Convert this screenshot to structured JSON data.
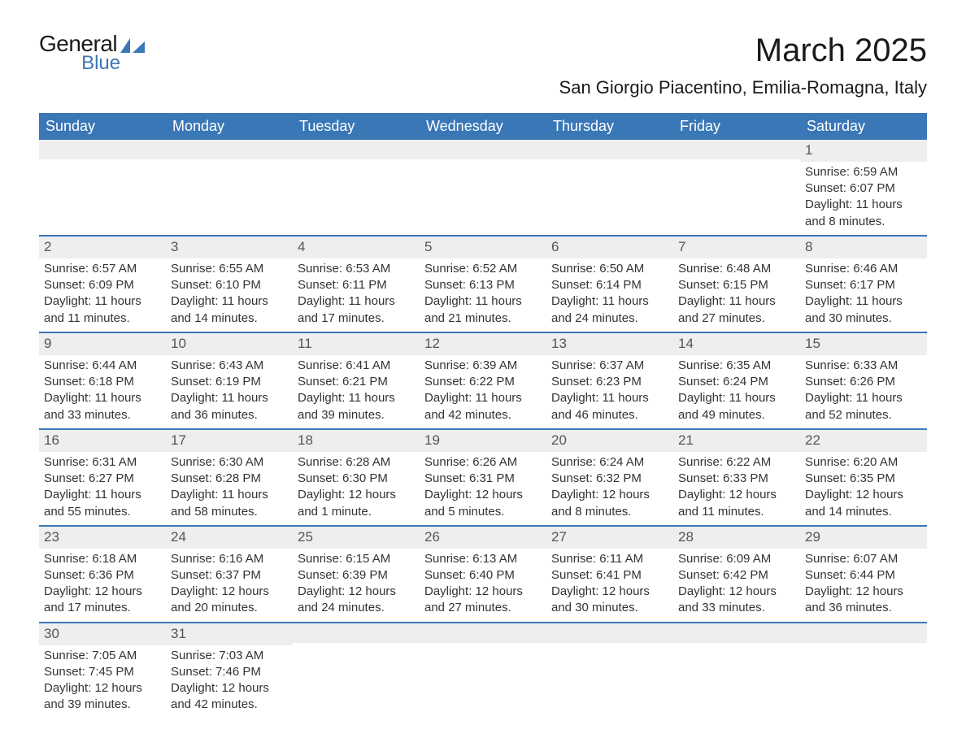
{
  "logo": {
    "top": "General",
    "bottom": "Blue",
    "sail_color": "#3a77b7"
  },
  "title": "March 2025",
  "subtitle": "San Giorgio Piacentino, Emilia-Romagna, Italy",
  "colors": {
    "header_bg": "#3a77b7",
    "header_text": "#ffffff",
    "daynum_bg": "#eeeeee",
    "daynum_text": "#555555",
    "row_border": "#3a77b7",
    "body_text": "#333333",
    "page_bg": "#ffffff"
  },
  "dayNames": [
    "Sunday",
    "Monday",
    "Tuesday",
    "Wednesday",
    "Thursday",
    "Friday",
    "Saturday"
  ],
  "labels": {
    "sunrise": "Sunrise:",
    "sunset": "Sunset:",
    "daylight": "Daylight:"
  },
  "weeks": [
    [
      null,
      null,
      null,
      null,
      null,
      null,
      {
        "n": 1,
        "sunrise": "6:59 AM",
        "sunset": "6:07 PM",
        "daylight": "11 hours and 8 minutes."
      }
    ],
    [
      {
        "n": 2,
        "sunrise": "6:57 AM",
        "sunset": "6:09 PM",
        "daylight": "11 hours and 11 minutes."
      },
      {
        "n": 3,
        "sunrise": "6:55 AM",
        "sunset": "6:10 PM",
        "daylight": "11 hours and 14 minutes."
      },
      {
        "n": 4,
        "sunrise": "6:53 AM",
        "sunset": "6:11 PM",
        "daylight": "11 hours and 17 minutes."
      },
      {
        "n": 5,
        "sunrise": "6:52 AM",
        "sunset": "6:13 PM",
        "daylight": "11 hours and 21 minutes."
      },
      {
        "n": 6,
        "sunrise": "6:50 AM",
        "sunset": "6:14 PM",
        "daylight": "11 hours and 24 minutes."
      },
      {
        "n": 7,
        "sunrise": "6:48 AM",
        "sunset": "6:15 PM",
        "daylight": "11 hours and 27 minutes."
      },
      {
        "n": 8,
        "sunrise": "6:46 AM",
        "sunset": "6:17 PM",
        "daylight": "11 hours and 30 minutes."
      }
    ],
    [
      {
        "n": 9,
        "sunrise": "6:44 AM",
        "sunset": "6:18 PM",
        "daylight": "11 hours and 33 minutes."
      },
      {
        "n": 10,
        "sunrise": "6:43 AM",
        "sunset": "6:19 PM",
        "daylight": "11 hours and 36 minutes."
      },
      {
        "n": 11,
        "sunrise": "6:41 AM",
        "sunset": "6:21 PM",
        "daylight": "11 hours and 39 minutes."
      },
      {
        "n": 12,
        "sunrise": "6:39 AM",
        "sunset": "6:22 PM",
        "daylight": "11 hours and 42 minutes."
      },
      {
        "n": 13,
        "sunrise": "6:37 AM",
        "sunset": "6:23 PM",
        "daylight": "11 hours and 46 minutes."
      },
      {
        "n": 14,
        "sunrise": "6:35 AM",
        "sunset": "6:24 PM",
        "daylight": "11 hours and 49 minutes."
      },
      {
        "n": 15,
        "sunrise": "6:33 AM",
        "sunset": "6:26 PM",
        "daylight": "11 hours and 52 minutes."
      }
    ],
    [
      {
        "n": 16,
        "sunrise": "6:31 AM",
        "sunset": "6:27 PM",
        "daylight": "11 hours and 55 minutes."
      },
      {
        "n": 17,
        "sunrise": "6:30 AM",
        "sunset": "6:28 PM",
        "daylight": "11 hours and 58 minutes."
      },
      {
        "n": 18,
        "sunrise": "6:28 AM",
        "sunset": "6:30 PM",
        "daylight": "12 hours and 1 minute."
      },
      {
        "n": 19,
        "sunrise": "6:26 AM",
        "sunset": "6:31 PM",
        "daylight": "12 hours and 5 minutes."
      },
      {
        "n": 20,
        "sunrise": "6:24 AM",
        "sunset": "6:32 PM",
        "daylight": "12 hours and 8 minutes."
      },
      {
        "n": 21,
        "sunrise": "6:22 AM",
        "sunset": "6:33 PM",
        "daylight": "12 hours and 11 minutes."
      },
      {
        "n": 22,
        "sunrise": "6:20 AM",
        "sunset": "6:35 PM",
        "daylight": "12 hours and 14 minutes."
      }
    ],
    [
      {
        "n": 23,
        "sunrise": "6:18 AM",
        "sunset": "6:36 PM",
        "daylight": "12 hours and 17 minutes."
      },
      {
        "n": 24,
        "sunrise": "6:16 AM",
        "sunset": "6:37 PM",
        "daylight": "12 hours and 20 minutes."
      },
      {
        "n": 25,
        "sunrise": "6:15 AM",
        "sunset": "6:39 PM",
        "daylight": "12 hours and 24 minutes."
      },
      {
        "n": 26,
        "sunrise": "6:13 AM",
        "sunset": "6:40 PM",
        "daylight": "12 hours and 27 minutes."
      },
      {
        "n": 27,
        "sunrise": "6:11 AM",
        "sunset": "6:41 PM",
        "daylight": "12 hours and 30 minutes."
      },
      {
        "n": 28,
        "sunrise": "6:09 AM",
        "sunset": "6:42 PM",
        "daylight": "12 hours and 33 minutes."
      },
      {
        "n": 29,
        "sunrise": "6:07 AM",
        "sunset": "6:44 PM",
        "daylight": "12 hours and 36 minutes."
      }
    ],
    [
      {
        "n": 30,
        "sunrise": "7:05 AM",
        "sunset": "7:45 PM",
        "daylight": "12 hours and 39 minutes."
      },
      {
        "n": 31,
        "sunrise": "7:03 AM",
        "sunset": "7:46 PM",
        "daylight": "12 hours and 42 minutes."
      },
      null,
      null,
      null,
      null,
      null
    ]
  ]
}
